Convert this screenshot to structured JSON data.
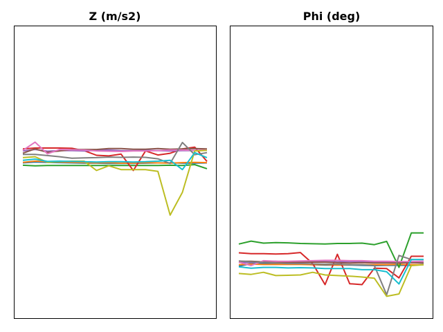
{
  "chart_data": [
    {
      "type": "line",
      "title": "Z (m/s2)",
      "xlabel": "",
      "ylabel": "",
      "x": [
        0,
        1,
        2,
        3,
        4,
        5,
        6,
        7,
        8,
        9,
        10,
        11,
        12,
        13,
        14,
        15
      ],
      "ylim": [
        0,
        100
      ],
      "grid": false,
      "legend": "none",
      "series": [
        {
          "color": "#1f77b4",
          "values": [
            53.2,
            53.5,
            53.4,
            53.3,
            53.2,
            53.1,
            53.1,
            53.0,
            53.0,
            53.0,
            53.1,
            53.2,
            53.2,
            53.1,
            53.1,
            53.2
          ]
        },
        {
          "color": "#ff7f0e",
          "values": [
            53.4,
            53.8,
            53.6,
            53.5,
            53.4,
            53.3,
            53.2,
            53.3,
            53.1,
            53.1,
            53.3,
            53.2,
            53.1,
            53.3,
            53.4,
            53.3
          ]
        },
        {
          "color": "#2ca02c",
          "values": [
            52.4,
            52.2,
            52.3,
            52.3,
            52.3,
            52.3,
            52.3,
            52.3,
            52.3,
            52.3,
            52.3,
            52.3,
            52.4,
            52.3,
            52.6,
            51.2
          ]
        },
        {
          "color": "#d62728",
          "values": [
            58.0,
            58.3,
            58.3,
            58.3,
            58.2,
            57.4,
            55.8,
            55.6,
            56.2,
            50.6,
            57.3,
            55.9,
            56.5,
            58.0,
            58.6,
            53.7
          ]
        },
        {
          "color": "#9467bd",
          "values": [
            57.3,
            57.8,
            57.2,
            57.4,
            57.4,
            57.3,
            57.5,
            57.6,
            57.4,
            57.4,
            57.5,
            57.4,
            57.3,
            57.4,
            57.4,
            57.5
          ]
        },
        {
          "color": "#8c564b",
          "values": [
            56.5,
            58.0,
            56.8,
            57.3,
            57.8,
            57.8,
            57.8,
            58.1,
            58.1,
            57.9,
            57.9,
            58.1,
            57.9,
            58.0,
            58.1,
            58.0
          ]
        },
        {
          "color": "#e377c2",
          "values": [
            57.5,
            60.3,
            56.3,
            57.8,
            57.7,
            57.6,
            57.3,
            57.2,
            57.1,
            57.3,
            57.3,
            57.4,
            57.6,
            57.6,
            57.5,
            57.6
          ]
        },
        {
          "color": "#7f7f7f",
          "values": [
            56.1,
            56.1,
            55.7,
            55.3,
            54.8,
            54.9,
            55.0,
            55.2,
            55.1,
            55.2,
            55.1,
            54.6,
            53.0,
            60.2,
            56.0,
            56.7
          ]
        },
        {
          "color": "#bcbd22",
          "values": [
            55.0,
            55.3,
            53.4,
            53.6,
            53.8,
            53.8,
            50.6,
            52.2,
            50.9,
            50.9,
            50.9,
            50.3,
            35.3,
            43.1,
            57.3,
            57.5
          ]
        },
        {
          "color": "#17becf",
          "values": [
            54.1,
            54.5,
            53.7,
            53.8,
            53.7,
            53.6,
            53.5,
            53.6,
            53.6,
            53.5,
            53.6,
            53.8,
            54.1,
            50.9,
            56.7,
            55.0
          ]
        }
      ]
    },
    {
      "type": "line",
      "title": "Phi (deg)",
      "xlabel": "",
      "ylabel": "",
      "x": [
        0,
        1,
        2,
        3,
        4,
        5,
        6,
        7,
        8,
        9,
        10,
        11,
        12,
        13,
        14,
        15
      ],
      "ylim": [
        0,
        100
      ],
      "grid": false,
      "legend": "none",
      "series": [
        {
          "color": "#1f77b4",
          "values": [
            17.8,
            18.7,
            18.7,
            18.5,
            18.6,
            18.5,
            18.3,
            18.2,
            18.2,
            18.2,
            18.1,
            18.0,
            18.1,
            18.1,
            18.1,
            18.4
          ]
        },
        {
          "color": "#ff7f0e",
          "values": [
            18.3,
            18.5,
            18.4,
            18.4,
            18.4,
            18.4,
            18.3,
            18.4,
            18.2,
            18.3,
            18.3,
            18.3,
            18.3,
            18.4,
            18.3,
            18.3
          ]
        },
        {
          "color": "#2ca02c",
          "values": [
            25.4,
            26.4,
            25.7,
            25.9,
            25.8,
            25.6,
            25.5,
            25.4,
            25.6,
            25.6,
            25.7,
            25.2,
            26.3,
            17.4,
            29.2,
            29.2
          ]
        },
        {
          "color": "#d62728",
          "values": [
            22.4,
            22.1,
            22.1,
            22.0,
            22.1,
            22.5,
            18.7,
            11.5,
            21.9,
            11.8,
            11.5,
            17.1,
            17.0,
            13.8,
            21.2,
            21.2
          ]
        },
        {
          "color": "#9467bd",
          "values": [
            19.1,
            19.0,
            19.4,
            19.5,
            19.2,
            19.3,
            19.4,
            19.4,
            19.3,
            19.4,
            19.3,
            19.3,
            19.2,
            19.2,
            19.2,
            19.0
          ]
        },
        {
          "color": "#8c564b",
          "values": [
            19.5,
            19.5,
            19.3,
            19.2,
            19.1,
            19.1,
            19.2,
            19.2,
            19.0,
            18.9,
            19.0,
            18.9,
            18.9,
            18.9,
            19.0,
            18.9
          ]
        },
        {
          "color": "#e377c2",
          "values": [
            19.2,
            18.0,
            19.7,
            19.5,
            19.5,
            19.6,
            19.7,
            19.8,
            19.8,
            19.7,
            19.7,
            19.5,
            19.5,
            19.4,
            19.4,
            19.5
          ]
        },
        {
          "color": "#7f7f7f",
          "values": [
            19.6,
            19.3,
            19.1,
            18.9,
            18.7,
            18.7,
            18.6,
            18.5,
            18.5,
            18.3,
            18.3,
            18.0,
            8.0,
            21.5,
            20.1,
            20.1
          ]
        },
        {
          "color": "#bcbd22",
          "values": [
            15.3,
            15.0,
            15.7,
            14.6,
            14.7,
            14.8,
            15.7,
            14.8,
            14.6,
            14.4,
            14.1,
            13.7,
            7.5,
            8.3,
            18.0,
            18.3
          ]
        },
        {
          "color": "#17becf",
          "values": [
            17.6,
            17.1,
            17.4,
            17.4,
            17.2,
            17.3,
            17.2,
            17.0,
            17.0,
            17.0,
            16.6,
            16.6,
            15.9,
            11.7,
            20.1,
            20.1
          ]
        }
      ]
    }
  ]
}
